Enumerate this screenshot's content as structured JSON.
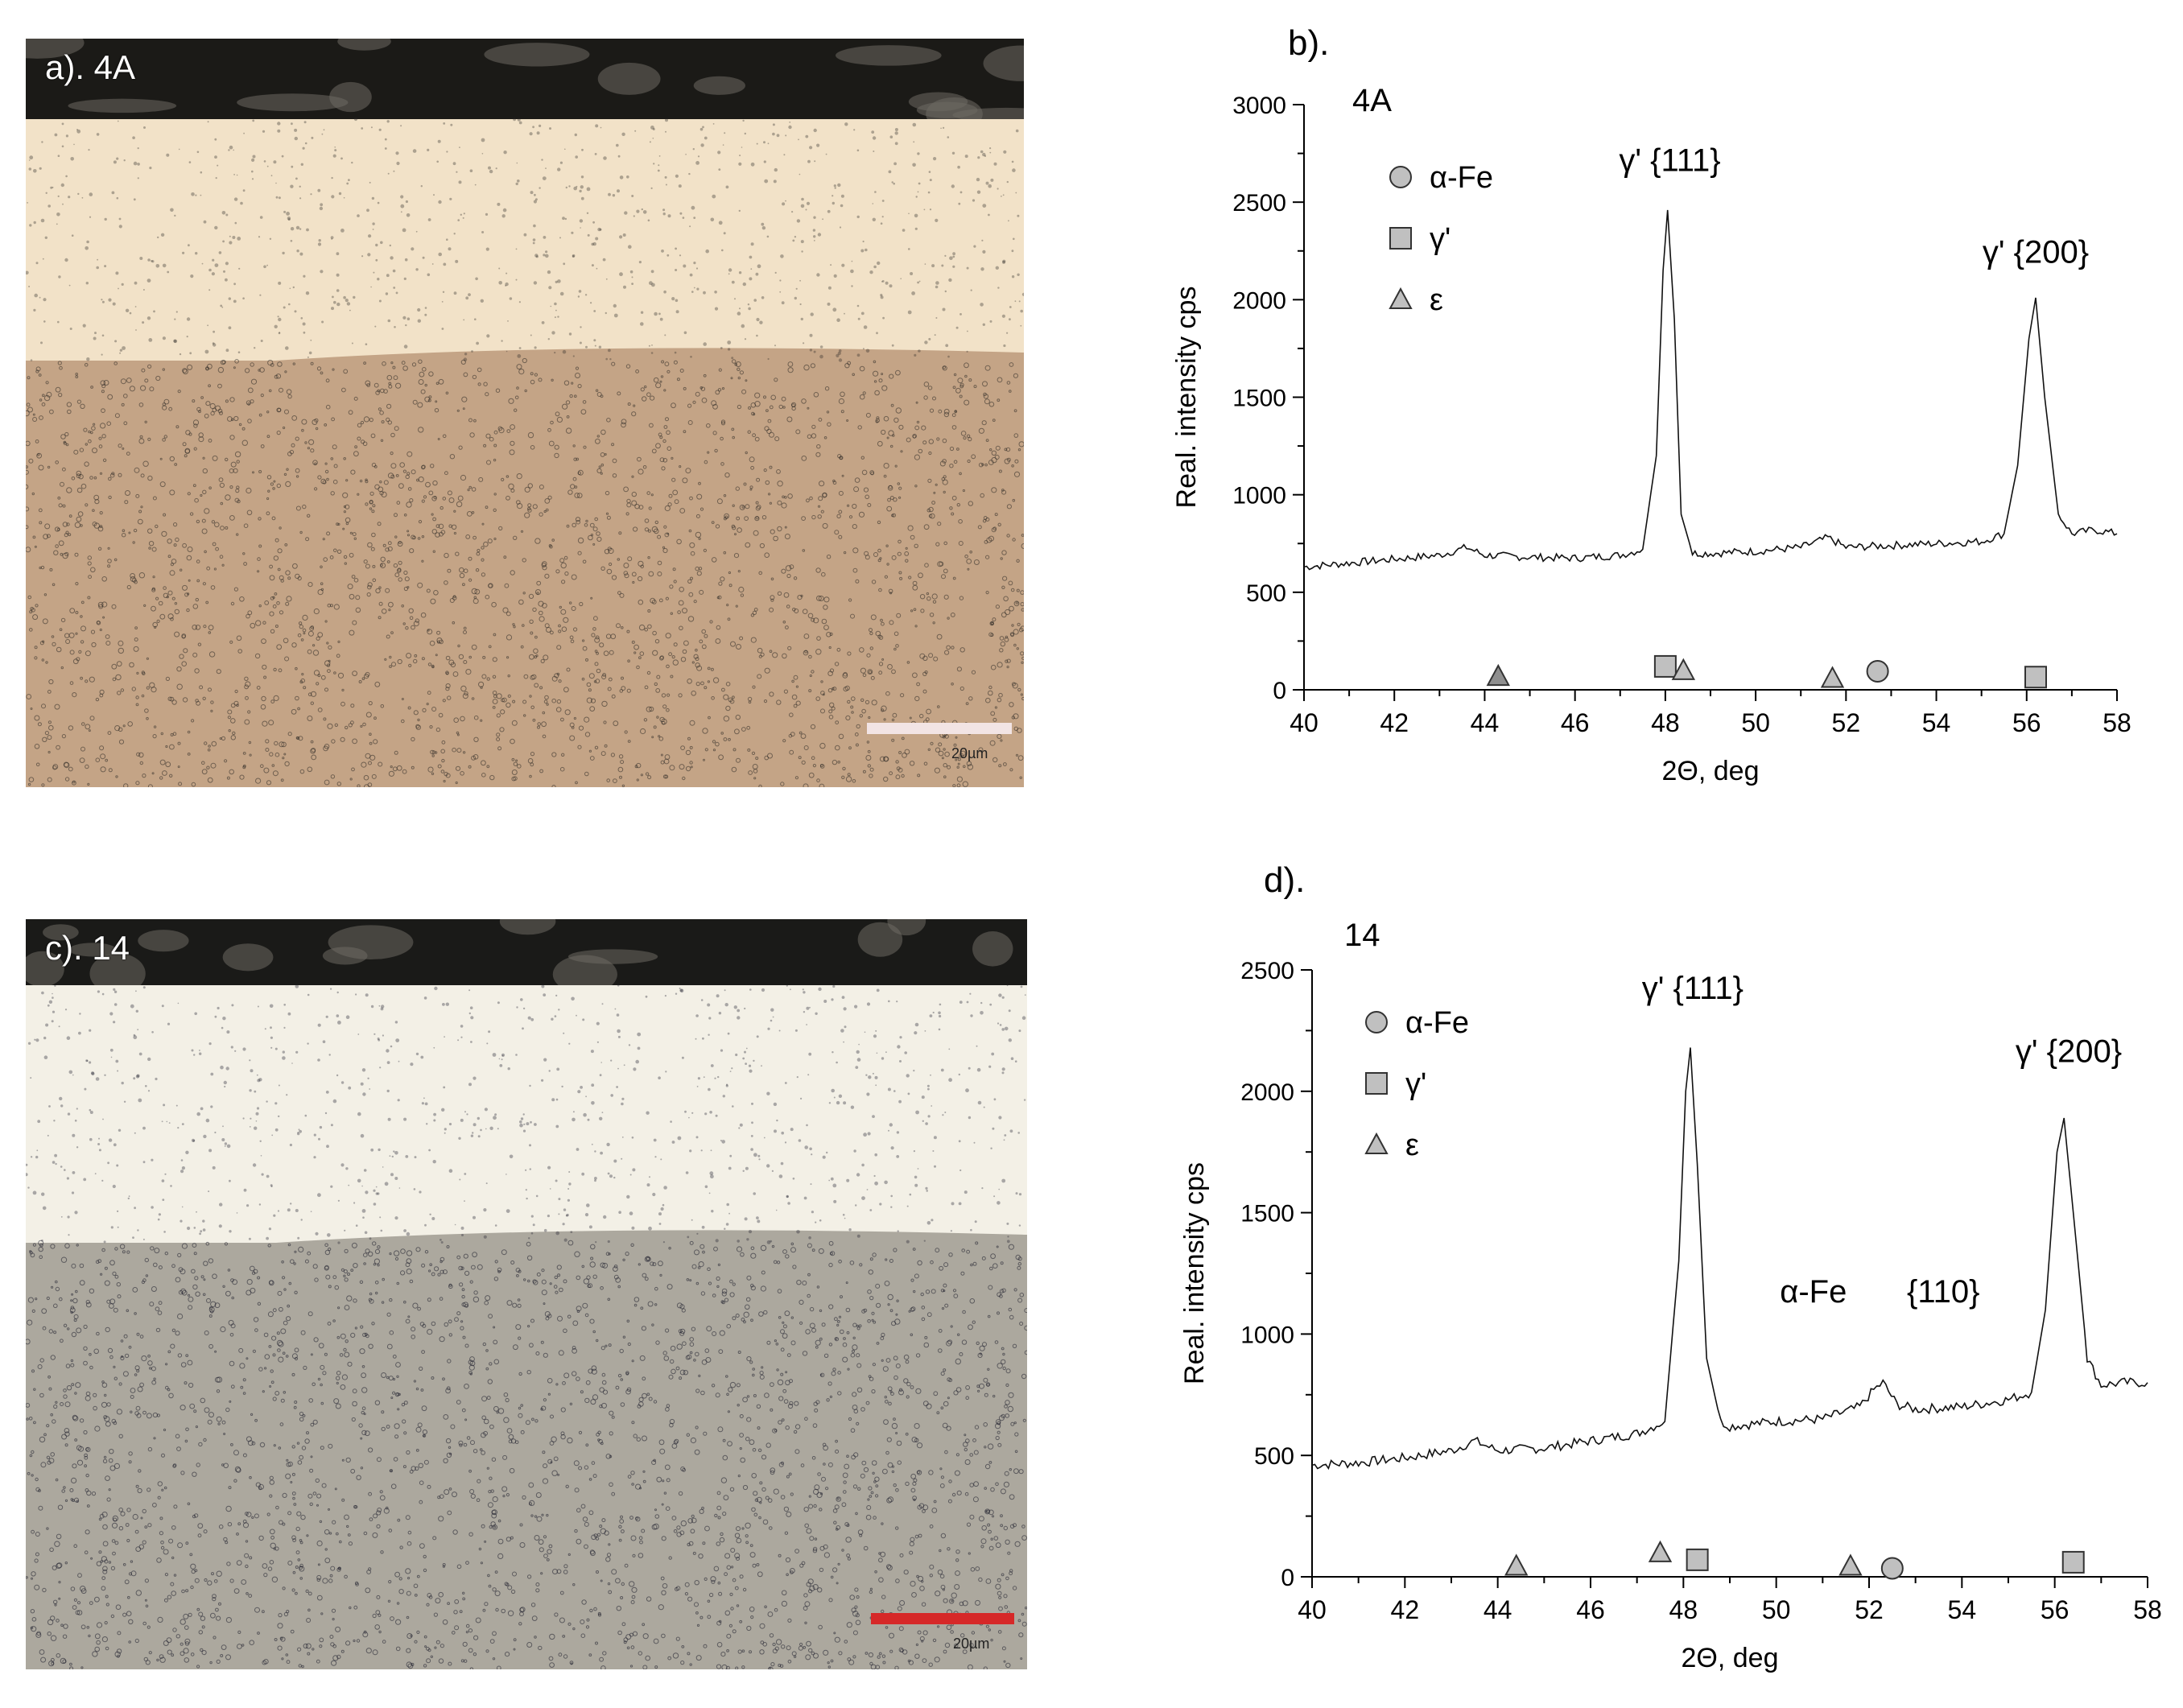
{
  "panel_a": {
    "label": "a). 4A",
    "scale": "20µm"
  },
  "panel_c": {
    "label": "c). 14",
    "scale": "20µm"
  },
  "colors": {
    "a_top": "#f2e2c8",
    "a_bottom": "#c4a486",
    "a_speck": "#2c2824",
    "a_edge": "#1b1a17",
    "c_top": "#f3f0e6",
    "c_bottom": "#aca89e",
    "c_speck": "#1c1c2a",
    "c_edge": "#1a1a18",
    "scalebar_a": "#f2e4e4",
    "scalebar_c": "#d62828",
    "marker_fill": "#c0c0c0",
    "marker_fill_dark": "#8f8f8f"
  },
  "chart_data": [
    {
      "type": "line",
      "panel_label": "b).",
      "sample_label": "4A",
      "xlabel": "2Θ, deg",
      "ylabel": "Real. intensity cps",
      "xlim": [
        40,
        58
      ],
      "ylim": [
        0,
        3000
      ],
      "xticks": [
        "40",
        "42",
        "44",
        "46",
        "48",
        "50",
        "52",
        "54",
        "56",
        "58"
      ],
      "yticks": [
        "0",
        "500",
        "1000",
        "1500",
        "2000",
        "2500",
        "3000"
      ],
      "legend": [
        {
          "marker": "circle",
          "label": "α-Fe"
        },
        {
          "marker": "square",
          "label": "γ'"
        },
        {
          "marker": "triangle",
          "label": "ε"
        }
      ],
      "annotations": [
        {
          "text": "γ' {111}",
          "x": 48.1,
          "y": 2660
        },
        {
          "text": "γ' {200}",
          "x": 56.2,
          "y": 2190
        }
      ],
      "series": [
        {
          "x": [
            40,
            41,
            42,
            43,
            43.6,
            44,
            45,
            46,
            47,
            47.5,
            47.8,
            47.95,
            48.05,
            48.2,
            48.35,
            48.6,
            49,
            50,
            51,
            51.6,
            52,
            53,
            54,
            55,
            55.5,
            55.8,
            56.05,
            56.2,
            56.4,
            56.7,
            57,
            57.5,
            58
          ],
          "y": [
            630,
            650,
            670,
            690,
            730,
            690,
            680,
            675,
            690,
            720,
            1200,
            2150,
            2460,
            1900,
            900,
            700,
            700,
            710,
            730,
            780,
            730,
            740,
            750,
            760,
            800,
            1150,
            1800,
            2010,
            1500,
            900,
            800,
            820,
            800
          ]
        }
      ],
      "phase_markers": [
        {
          "phase": "ε",
          "shape": "triangle",
          "x": 44.3,
          "y": 70,
          "dark": true
        },
        {
          "phase": "γ'",
          "shape": "square",
          "x": 48.0,
          "y": 120
        },
        {
          "phase": "ε",
          "shape": "triangle",
          "x": 48.4,
          "y": 100
        },
        {
          "phase": "ε",
          "shape": "triangle",
          "x": 51.7,
          "y": 60
        },
        {
          "phase": "α-Fe",
          "shape": "circle",
          "x": 52.7,
          "y": 95
        },
        {
          "phase": "γ'",
          "shape": "square",
          "x": 56.2,
          "y": 65
        }
      ]
    },
    {
      "type": "line",
      "panel_label": "d).",
      "sample_label": "14",
      "xlabel": "2Θ, deg",
      "ylabel": "Real. intensity cps",
      "xlim": [
        40,
        58
      ],
      "ylim": [
        0,
        2500
      ],
      "xticks": [
        "40",
        "42",
        "44",
        "46",
        "48",
        "50",
        "52",
        "54",
        "56",
        "58"
      ],
      "yticks": [
        "0",
        "500",
        "1000",
        "1500",
        "2000",
        "2500"
      ],
      "legend": [
        {
          "marker": "circle",
          "label": "α-Fe"
        },
        {
          "marker": "square",
          "label": "γ'"
        },
        {
          "marker": "triangle",
          "label": "ε"
        }
      ],
      "annotations": [
        {
          "text": "γ' {111}",
          "x": 48.2,
          "y": 2380
        },
        {
          "text": "γ' {200}",
          "x": 56.3,
          "y": 2120
        },
        {
          "text": "α-Fe",
          "x": 50.8,
          "y": 1130
        },
        {
          "text": "{110}",
          "x": 53.6,
          "y": 1130
        }
      ],
      "series": [
        {
          "x": [
            40,
            41,
            42,
            43,
            43.5,
            44,
            45,
            46,
            47,
            47.6,
            47.9,
            48.05,
            48.15,
            48.3,
            48.5,
            48.8,
            49,
            50,
            51,
            51.8,
            52.1,
            52.3,
            52.6,
            53,
            54,
            55,
            55.5,
            55.8,
            56.05,
            56.2,
            56.4,
            56.7,
            57,
            57.5,
            58
          ],
          "y": [
            460,
            470,
            490,
            520,
            560,
            520,
            530,
            560,
            590,
            640,
            1300,
            2000,
            2180,
            1700,
            900,
            640,
            620,
            640,
            650,
            700,
            770,
            800,
            710,
            690,
            700,
            730,
            760,
            1100,
            1750,
            1890,
            1500,
            900,
            790,
            800,
            800
          ]
        }
      ],
      "phase_markers": [
        {
          "phase": "ε",
          "shape": "triangle",
          "x": 44.4,
          "y": 45
        },
        {
          "phase": "ε",
          "shape": "triangle",
          "x": 47.5,
          "y": 100
        },
        {
          "phase": "γ'",
          "shape": "square",
          "x": 48.3,
          "y": 70
        },
        {
          "phase": "ε",
          "shape": "triangle",
          "x": 51.6,
          "y": 45
        },
        {
          "phase": "α-Fe",
          "shape": "circle",
          "x": 52.5,
          "y": 35
        },
        {
          "phase": "γ'",
          "shape": "square",
          "x": 56.4,
          "y": 60
        }
      ]
    }
  ]
}
